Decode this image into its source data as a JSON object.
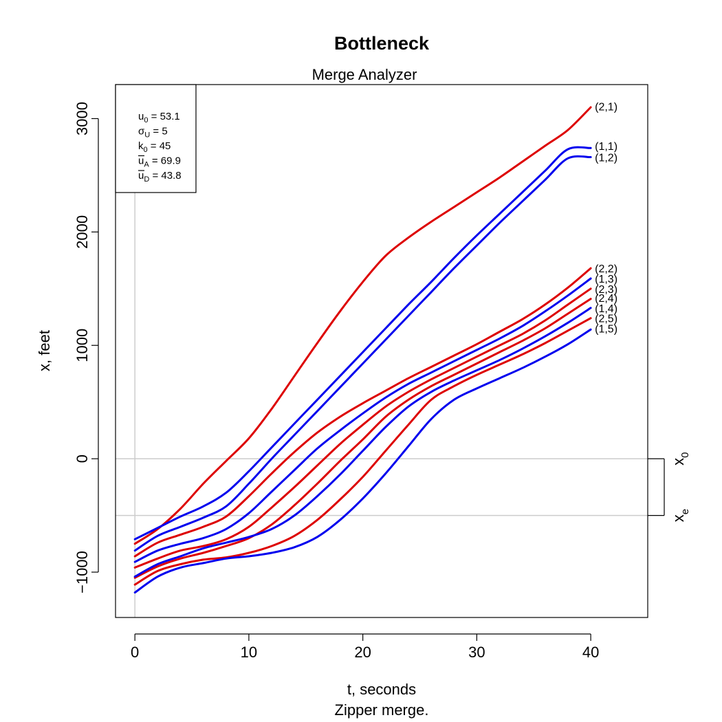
{
  "chart_data": {
    "type": "line",
    "title": "Bottleneck",
    "subtitle": "Merge Analyzer",
    "xlabel": "t, seconds",
    "caption": "Zipper merge.",
    "ylabel": "x, feet",
    "xlim": [
      -1.7,
      45
    ],
    "ylim": [
      -1400,
      3300
    ],
    "x_ticks": [
      0,
      10,
      20,
      30,
      40
    ],
    "y_ticks": [
      -1000,
      0,
      1000,
      2000,
      3000
    ],
    "x_tick_labels": [
      "0",
      "10",
      "20",
      "30",
      "40"
    ],
    "y_tick_labels": [
      "−1000",
      "0",
      "1000",
      "2000",
      "3000"
    ],
    "grid": false,
    "reference_lines": [
      {
        "name": "x_0",
        "main": "x",
        "sub": "0",
        "y": 0
      },
      {
        "name": "x_e",
        "main": "x",
        "sub": "e",
        "y": -500
      }
    ],
    "vertical_reference": {
      "x": 0
    },
    "info_box": {
      "lines": [
        {
          "main": "u",
          "sub": "0",
          "bar": false,
          "greek": false,
          "value": " = 53.1"
        },
        {
          "main": "σ",
          "sub": "U",
          "bar": false,
          "greek": true,
          "value": " = 5"
        },
        {
          "main": "k",
          "sub": "0",
          "bar": false,
          "greek": false,
          "value": " = 45"
        },
        {
          "main": "u",
          "sub": "A",
          "bar": true,
          "greek": false,
          "value": " = 69.9"
        },
        {
          "main": "u",
          "sub": "D",
          "bar": true,
          "greek": false,
          "value": " = 43.8"
        }
      ]
    },
    "colors": {
      "lane1": "#0000ee",
      "lane2": "#dd0000",
      "refline": "#cccccc",
      "axis": "#000000"
    },
    "series": [
      {
        "name": "(2,1)",
        "color": "#dd0000",
        "points": [
          [
            0,
            -750
          ],
          [
            2,
            -620
          ],
          [
            4,
            -440
          ],
          [
            6,
            -220
          ],
          [
            8,
            -20
          ],
          [
            10,
            180
          ],
          [
            12,
            440
          ],
          [
            14,
            730
          ],
          [
            16,
            1020
          ],
          [
            18,
            1300
          ],
          [
            20,
            1560
          ],
          [
            22,
            1790
          ],
          [
            24,
            1950
          ],
          [
            26,
            2090
          ],
          [
            28,
            2220
          ],
          [
            30,
            2350
          ],
          [
            32,
            2480
          ],
          [
            34,
            2620
          ],
          [
            36,
            2760
          ],
          [
            38,
            2900
          ],
          [
            40,
            3100
          ]
        ]
      },
      {
        "name": "(1,1)",
        "color": "#0000ee",
        "points": [
          [
            0,
            -710
          ],
          [
            2,
            -610
          ],
          [
            4,
            -510
          ],
          [
            6,
            -420
          ],
          [
            8,
            -300
          ],
          [
            10,
            -110
          ],
          [
            12,
            100
          ],
          [
            14,
            310
          ],
          [
            16,
            520
          ],
          [
            18,
            730
          ],
          [
            20,
            940
          ],
          [
            22,
            1150
          ],
          [
            24,
            1360
          ],
          [
            26,
            1560
          ],
          [
            28,
            1770
          ],
          [
            30,
            1970
          ],
          [
            32,
            2160
          ],
          [
            34,
            2350
          ],
          [
            36,
            2540
          ],
          [
            38,
            2730
          ],
          [
            40,
            2740
          ]
        ]
      },
      {
        "name": "(1,2)",
        "color": "#0000ee",
        "points": [
          [
            0,
            -810
          ],
          [
            2,
            -680
          ],
          [
            4,
            -600
          ],
          [
            6,
            -520
          ],
          [
            8,
            -420
          ],
          [
            10,
            -220
          ],
          [
            12,
            0
          ],
          [
            14,
            210
          ],
          [
            16,
            420
          ],
          [
            18,
            630
          ],
          [
            20,
            840
          ],
          [
            22,
            1050
          ],
          [
            24,
            1260
          ],
          [
            26,
            1470
          ],
          [
            28,
            1680
          ],
          [
            30,
            1880
          ],
          [
            32,
            2080
          ],
          [
            34,
            2270
          ],
          [
            36,
            2460
          ],
          [
            38,
            2650
          ],
          [
            40,
            2660
          ]
        ]
      },
      {
        "name": "(2,2)",
        "color": "#dd0000",
        "points": [
          [
            0,
            -860
          ],
          [
            2,
            -740
          ],
          [
            4,
            -670
          ],
          [
            6,
            -600
          ],
          [
            8,
            -510
          ],
          [
            10,
            -330
          ],
          [
            12,
            -130
          ],
          [
            14,
            60
          ],
          [
            16,
            230
          ],
          [
            18,
            370
          ],
          [
            20,
            490
          ],
          [
            22,
            600
          ],
          [
            24,
            710
          ],
          [
            26,
            810
          ],
          [
            28,
            910
          ],
          [
            30,
            1010
          ],
          [
            32,
            1120
          ],
          [
            34,
            1230
          ],
          [
            36,
            1360
          ],
          [
            38,
            1510
          ],
          [
            40,
            1680
          ]
        ]
      },
      {
        "name": "(1,3)",
        "color": "#0000ee",
        "points": [
          [
            0,
            -910
          ],
          [
            2,
            -810
          ],
          [
            4,
            -750
          ],
          [
            6,
            -700
          ],
          [
            8,
            -620
          ],
          [
            10,
            -480
          ],
          [
            12,
            -290
          ],
          [
            14,
            -100
          ],
          [
            16,
            90
          ],
          [
            18,
            250
          ],
          [
            20,
            400
          ],
          [
            22,
            540
          ],
          [
            24,
            660
          ],
          [
            26,
            760
          ],
          [
            28,
            860
          ],
          [
            30,
            960
          ],
          [
            32,
            1060
          ],
          [
            34,
            1170
          ],
          [
            36,
            1300
          ],
          [
            38,
            1440
          ],
          [
            40,
            1590
          ]
        ]
      },
      {
        "name": "(2,3)",
        "color": "#dd0000",
        "points": [
          [
            0,
            -960
          ],
          [
            2,
            -880
          ],
          [
            4,
            -810
          ],
          [
            6,
            -770
          ],
          [
            8,
            -710
          ],
          [
            10,
            -600
          ],
          [
            12,
            -430
          ],
          [
            14,
            -250
          ],
          [
            16,
            -60
          ],
          [
            18,
            130
          ],
          [
            20,
            300
          ],
          [
            22,
            460
          ],
          [
            24,
            590
          ],
          [
            26,
            700
          ],
          [
            28,
            800
          ],
          [
            30,
            900
          ],
          [
            32,
            1000
          ],
          [
            34,
            1100
          ],
          [
            36,
            1220
          ],
          [
            38,
            1360
          ],
          [
            40,
            1500
          ]
        ]
      },
      {
        "name": "(2,4)",
        "color": "#dd0000",
        "points": [
          [
            0,
            -1050
          ],
          [
            2,
            -950
          ],
          [
            4,
            -880
          ],
          [
            6,
            -830
          ],
          [
            8,
            -770
          ],
          [
            10,
            -700
          ],
          [
            12,
            -580
          ],
          [
            14,
            -410
          ],
          [
            16,
            -220
          ],
          [
            18,
            -20
          ],
          [
            20,
            170
          ],
          [
            22,
            370
          ],
          [
            24,
            520
          ],
          [
            26,
            640
          ],
          [
            28,
            740
          ],
          [
            30,
            840
          ],
          [
            32,
            940
          ],
          [
            34,
            1040
          ],
          [
            36,
            1150
          ],
          [
            38,
            1280
          ],
          [
            40,
            1410
          ]
        ]
      },
      {
        "name": "(1,4)",
        "color": "#0000ee",
        "points": [
          [
            0,
            -1040
          ],
          [
            2,
            -930
          ],
          [
            4,
            -860
          ],
          [
            6,
            -790
          ],
          [
            8,
            -740
          ],
          [
            10,
            -690
          ],
          [
            12,
            -620
          ],
          [
            14,
            -500
          ],
          [
            16,
            -330
          ],
          [
            18,
            -140
          ],
          [
            20,
            70
          ],
          [
            22,
            280
          ],
          [
            24,
            460
          ],
          [
            26,
            590
          ],
          [
            28,
            690
          ],
          [
            30,
            780
          ],
          [
            32,
            870
          ],
          [
            34,
            970
          ],
          [
            36,
            1080
          ],
          [
            38,
            1200
          ],
          [
            40,
            1330
          ]
        ]
      },
      {
        "name": "(2,5)",
        "color": "#dd0000",
        "points": [
          [
            0,
            -1110
          ],
          [
            2,
            -990
          ],
          [
            4,
            -930
          ],
          [
            6,
            -890
          ],
          [
            8,
            -870
          ],
          [
            10,
            -830
          ],
          [
            12,
            -770
          ],
          [
            14,
            -680
          ],
          [
            16,
            -540
          ],
          [
            18,
            -360
          ],
          [
            20,
            -160
          ],
          [
            22,
            70
          ],
          [
            24,
            300
          ],
          [
            26,
            520
          ],
          [
            28,
            640
          ],
          [
            30,
            740
          ],
          [
            32,
            830
          ],
          [
            34,
            920
          ],
          [
            36,
            1020
          ],
          [
            38,
            1130
          ],
          [
            40,
            1240
          ]
        ]
      },
      {
        "name": "(1,5)",
        "color": "#0000ee",
        "points": [
          [
            0,
            -1180
          ],
          [
            2,
            -1040
          ],
          [
            4,
            -960
          ],
          [
            6,
            -920
          ],
          [
            8,
            -880
          ],
          [
            10,
            -860
          ],
          [
            12,
            -830
          ],
          [
            14,
            -780
          ],
          [
            16,
            -690
          ],
          [
            18,
            -540
          ],
          [
            20,
            -350
          ],
          [
            22,
            -130
          ],
          [
            24,
            110
          ],
          [
            26,
            350
          ],
          [
            28,
            520
          ],
          [
            30,
            620
          ],
          [
            32,
            710
          ],
          [
            34,
            800
          ],
          [
            36,
            900
          ],
          [
            38,
            1010
          ],
          [
            40,
            1140
          ]
        ]
      }
    ],
    "end_labels": [
      {
        "text": "(2,1)",
        "y": 3110
      },
      {
        "text": "(1,1)",
        "y": 2760
      },
      {
        "text": "(1,2)",
        "y": 2660
      },
      {
        "text": "(2,2)",
        "y": 1680
      },
      {
        "text": "(1,3)",
        "y": 1590
      },
      {
        "text": "(2,3)",
        "y": 1500
      },
      {
        "text": "(2,4)",
        "y": 1420
      },
      {
        "text": "(1,4)",
        "y": 1330
      },
      {
        "text": "(2,5)",
        "y": 1240
      },
      {
        "text": "(1,5)",
        "y": 1150
      }
    ]
  }
}
